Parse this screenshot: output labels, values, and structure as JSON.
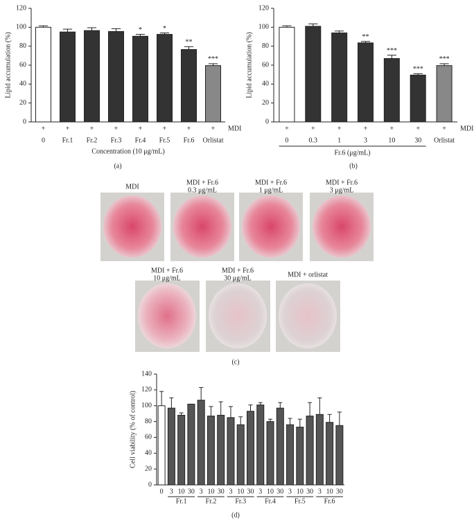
{
  "chart_data": [
    {
      "type": "bar",
      "panel_label": "(a)",
      "y_label": "Lipid accumulation (%)",
      "x_label": "Concentration (10 μg/mL)",
      "treatment_label": "MDI",
      "treatment_marks": [
        "+",
        "+",
        "+",
        "+",
        "+",
        "+",
        "+",
        "+"
      ],
      "categories": [
        "0",
        "Fr.1",
        "Fr.2",
        "Fr.3",
        "Fr.4",
        "Fr.5",
        "Fr.6",
        "Orlistat"
      ],
      "values": [
        100,
        95,
        96.5,
        95.5,
        90.5,
        92.5,
        76.5,
        59.5
      ],
      "errors": [
        1.5,
        3,
        3,
        3,
        2,
        1.5,
        3,
        2
      ],
      "significance": [
        null,
        null,
        null,
        null,
        "*",
        "*",
        "**",
        "***"
      ],
      "colors": [
        "#ffffff",
        "#333333",
        "#333333",
        "#333333",
        "#333333",
        "#333333",
        "#333333",
        "#888888"
      ],
      "ylim": [
        0,
        120
      ],
      "yticks": [
        0,
        20,
        40,
        60,
        80,
        100,
        120
      ]
    },
    {
      "type": "bar",
      "panel_label": "(b)",
      "y_label": "Lipid accumulation (%)",
      "x_label": "Fr.6 (μg/mL)",
      "treatment_label": "MDI",
      "treatment_marks": [
        "+",
        "+",
        "+",
        "+",
        "+",
        "+",
        "+"
      ],
      "categories": [
        "0",
        "0.3",
        "1",
        "3",
        "10",
        "30",
        "Orlistat"
      ],
      "values": [
        100,
        101,
        94,
        83.5,
        67,
        49.5,
        59.5
      ],
      "errors": [
        1.5,
        2.5,
        2,
        1.5,
        3.5,
        1.5,
        2
      ],
      "significance": [
        null,
        null,
        null,
        "**",
        "***",
        "***",
        "***"
      ],
      "colors": [
        "#ffffff",
        "#333333",
        "#333333",
        "#333333",
        "#333333",
        "#333333",
        "#888888"
      ],
      "ylim": [
        0,
        120
      ],
      "yticks": [
        0,
        20,
        40,
        60,
        80,
        100,
        120
      ]
    },
    {
      "type": "bar",
      "panel_label": "(d)",
      "y_label": "Cell viability (% of control)",
      "categories": [
        "0",
        "3",
        "10",
        "30",
        "3",
        "10",
        "30",
        "3",
        "10",
        "30",
        "3",
        "10",
        "30",
        "3",
        "10",
        "30",
        "3",
        "10",
        "30"
      ],
      "group_labels": [
        "Fr.1",
        "Fr.2",
        "Fr.3",
        "Fr.4",
        "Fr.5",
        "Fr.6"
      ],
      "values": [
        100,
        97,
        88,
        102,
        107,
        87,
        88,
        85,
        76,
        93,
        101,
        80,
        97,
        76,
        73,
        87,
        89,
        79,
        75
      ],
      "errors": [
        18,
        13,
        3,
        0,
        16,
        12,
        17,
        14,
        10,
        8,
        3,
        3,
        7,
        8,
        10,
        17,
        21,
        10,
        17
      ],
      "colors": [
        "#ffffff",
        "#555555",
        "#555555",
        "#555555",
        "#555555",
        "#555555",
        "#555555",
        "#555555",
        "#555555",
        "#555555",
        "#555555",
        "#555555",
        "#555555",
        "#555555",
        "#555555",
        "#555555",
        "#555555",
        "#555555",
        "#555555"
      ],
      "ylim": [
        0,
        140
      ],
      "yticks": [
        0,
        20,
        40,
        60,
        80,
        100,
        120,
        140
      ]
    }
  ],
  "photos": {
    "panel_label": "(c)",
    "captions": [
      [
        "MDI"
      ],
      [
        "MDI + Fr.6",
        "0.3 μg/mL"
      ],
      [
        "MDI + Fr.6",
        "1 μg/mL"
      ],
      [
        "MDI + Fr.6",
        "3 μg/mL"
      ],
      [
        "MDI + Fr.6",
        "10 μg/mL"
      ],
      [
        "MDI + Fr.6",
        "30 μg/mL"
      ],
      [
        "MDI + orlistat"
      ]
    ]
  }
}
